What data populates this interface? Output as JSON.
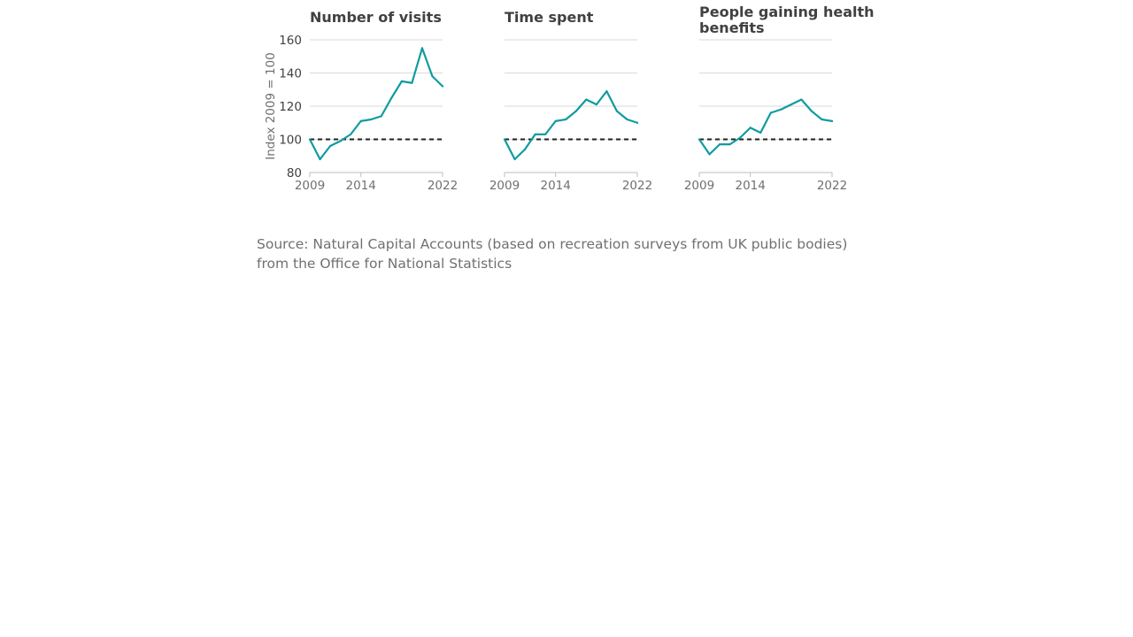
{
  "source": "Source: Natural Capital Accounts (based on recreation surveys from UK public bodies) from the Office for National Statistics",
  "chart_data": [
    {
      "type": "line",
      "title": "Number of visits",
      "ylabel": "Index 2009 = 100",
      "ylim": [
        80,
        160
      ],
      "yticks": [
        80,
        100,
        120,
        140,
        160
      ],
      "xlim": [
        2009,
        2022
      ],
      "xticks": [
        2009,
        2014,
        2022
      ],
      "grid": true,
      "reference_value": 100,
      "x": [
        2009,
        2010,
        2011,
        2012,
        2013,
        2014,
        2015,
        2016,
        2017,
        2018,
        2019,
        2020,
        2021,
        2022
      ],
      "series": [
        {
          "values": [
            100,
            88,
            96,
            99,
            103,
            111,
            112,
            114,
            125,
            135,
            134,
            155,
            138,
            132
          ]
        }
      ],
      "color": "#0f9ba0"
    },
    {
      "type": "line",
      "title": "Time spent",
      "ylim": [
        80,
        160
      ],
      "yticks": [
        80,
        100,
        120,
        140,
        160
      ],
      "xlim": [
        2009,
        2022
      ],
      "xticks": [
        2009,
        2014,
        2022
      ],
      "grid": true,
      "reference_value": 100,
      "x": [
        2009,
        2010,
        2011,
        2012,
        2013,
        2014,
        2015,
        2016,
        2017,
        2018,
        2019,
        2020,
        2021,
        2022
      ],
      "series": [
        {
          "values": [
            100,
            88,
            94,
            103,
            103,
            111,
            112,
            117,
            124,
            121,
            129,
            117,
            112,
            110
          ]
        }
      ],
      "color": "#0f9ba0"
    },
    {
      "type": "line",
      "title": "People gaining health benefits",
      "ylim": [
        80,
        160
      ],
      "yticks": [
        80,
        100,
        120,
        140,
        160
      ],
      "xlim": [
        2009,
        2022
      ],
      "xticks": [
        2009,
        2014,
        2022
      ],
      "grid": true,
      "reference_value": 100,
      "x": [
        2009,
        2010,
        2011,
        2012,
        2013,
        2014,
        2015,
        2016,
        2017,
        2018,
        2019,
        2020,
        2021,
        2022
      ],
      "series": [
        {
          "values": [
            100,
            91,
            97,
            97,
            101,
            107,
            104,
            116,
            118,
            121,
            124,
            117,
            112,
            111
          ]
        }
      ],
      "color": "#0f9ba0"
    }
  ]
}
